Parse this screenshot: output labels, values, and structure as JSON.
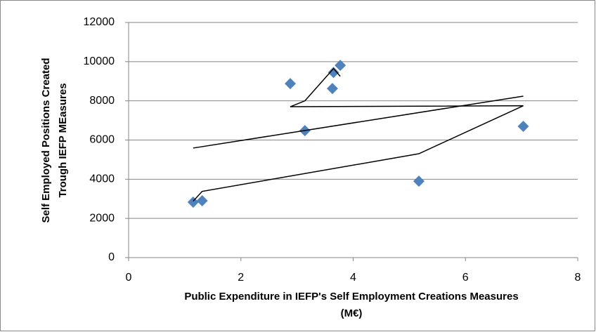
{
  "chart_data": {
    "type": "scatter",
    "x_label": [
      "Public Expenditure in IEFP's Self Employment Creations Measures",
      "(M€)"
    ],
    "y_label": [
      "Self Employed Positions Created",
      "Trough IEFP MEasures"
    ],
    "xlim": [
      0,
      8
    ],
    "xticks": [
      0,
      2,
      4,
      6,
      8
    ],
    "ylim": [
      0,
      12000
    ],
    "yticks": [
      0,
      2000,
      4000,
      6000,
      8000,
      10000,
      12000
    ],
    "grid": true,
    "series": [
      {
        "type": "scatter",
        "marker": "diamond",
        "color": "#4f81bd",
        "x": [
          1.15,
          1.31,
          2.88,
          3.14,
          3.63,
          3.65,
          3.77,
          5.17,
          7.03
        ],
        "values": [
          2830,
          2900,
          8880,
          6480,
          8630,
          9450,
          9810,
          3900,
          6700
        ]
      },
      {
        "type": "line",
        "color": "#000000",
        "x": [
          1.15,
          1.31,
          5.17,
          7.03,
          2.88,
          3.14,
          3.65,
          3.77
        ],
        "values": [
          2880,
          3380,
          5300,
          7750,
          7700,
          8000,
          9650,
          9250
        ]
      },
      {
        "type": "line",
        "color": "#000000",
        "x": [
          1.15,
          7.03
        ],
        "values": [
          5590,
          8240
        ]
      }
    ]
  }
}
